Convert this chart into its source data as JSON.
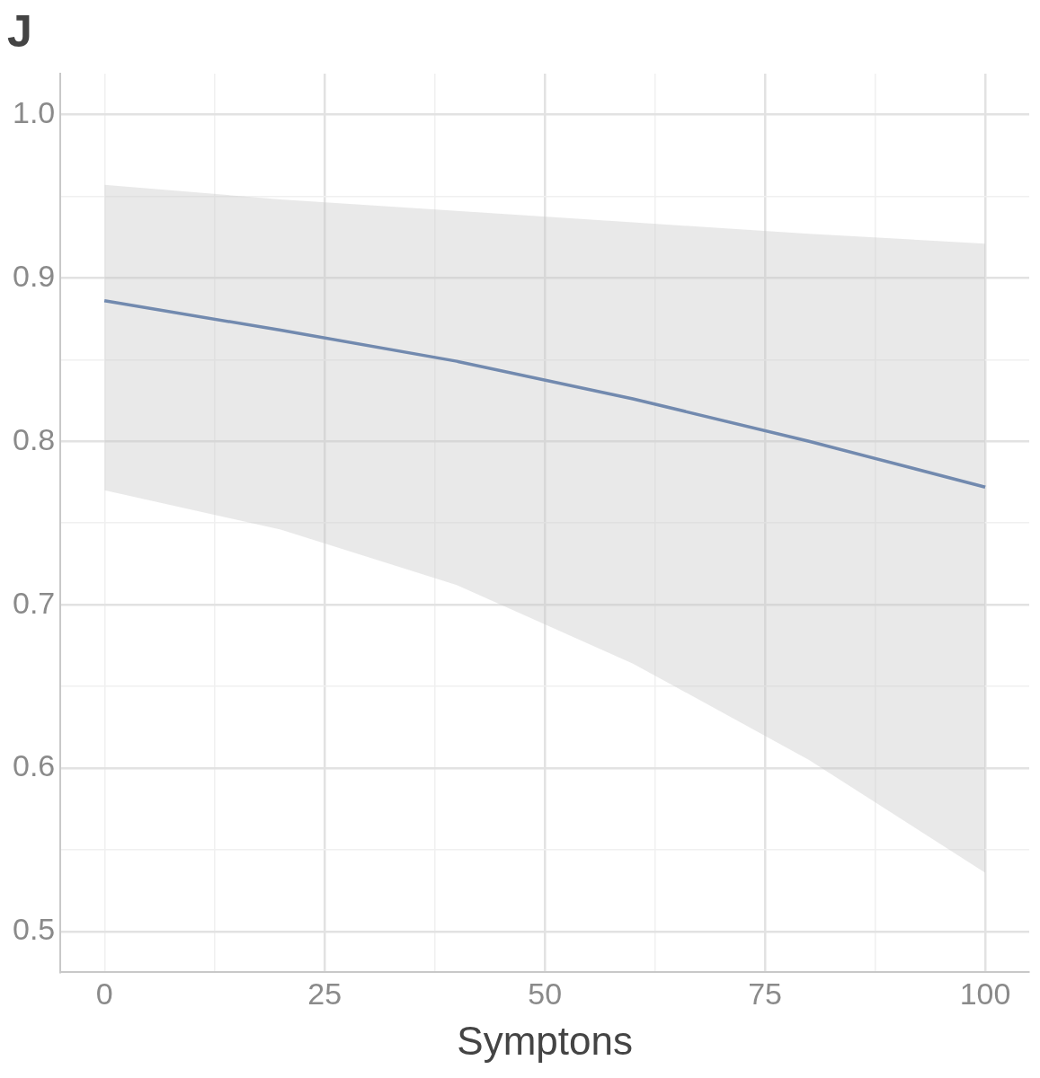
{
  "chart_data": {
    "type": "line",
    "title": "J",
    "xlabel": "Symptons",
    "x": [
      0,
      20,
      40,
      60,
      80,
      100
    ],
    "series": [
      {
        "color": "#3a619e",
        "values": [
          0.886,
          0.868,
          0.849,
          0.826,
          0.8,
          0.772
        ],
        "lower": [
          0.77,
          0.746,
          0.712,
          0.664,
          0.605,
          0.536
        ],
        "upper": [
          0.957,
          0.948,
          0.941,
          0.934,
          0.927,
          0.921
        ]
      }
    ],
    "xlim": [
      -5,
      105
    ],
    "xticks": [
      0,
      {
        "value": 12.5,
        "label": null
      },
      25,
      {
        "value": 37.5,
        "label": null
      },
      50,
      {
        "value": 62.5,
        "label": null
      },
      75,
      {
        "value": 87.5,
        "label": null
      },
      100
    ],
    "ylim": [
      0.475,
      1.025
    ],
    "yticks": [
      {
        "value": 0.5,
        "label": "0.5"
      },
      {
        "value": 0.55,
        "label": null
      },
      {
        "value": 0.6,
        "label": "0.6"
      },
      {
        "value": 0.65,
        "label": null
      },
      {
        "value": 0.7,
        "label": "0.7"
      },
      {
        "value": 0.75,
        "label": null
      },
      {
        "value": 0.8,
        "label": "0.8"
      },
      {
        "value": 0.85,
        "label": null
      },
      {
        "value": 0.9,
        "label": "0.9"
      },
      {
        "value": 0.95,
        "label": null
      },
      {
        "value": 1.0,
        "label": "1.0"
      }
    ],
    "grid": true,
    "legend": false,
    "marker": "none",
    "line_style": "solid"
  }
}
